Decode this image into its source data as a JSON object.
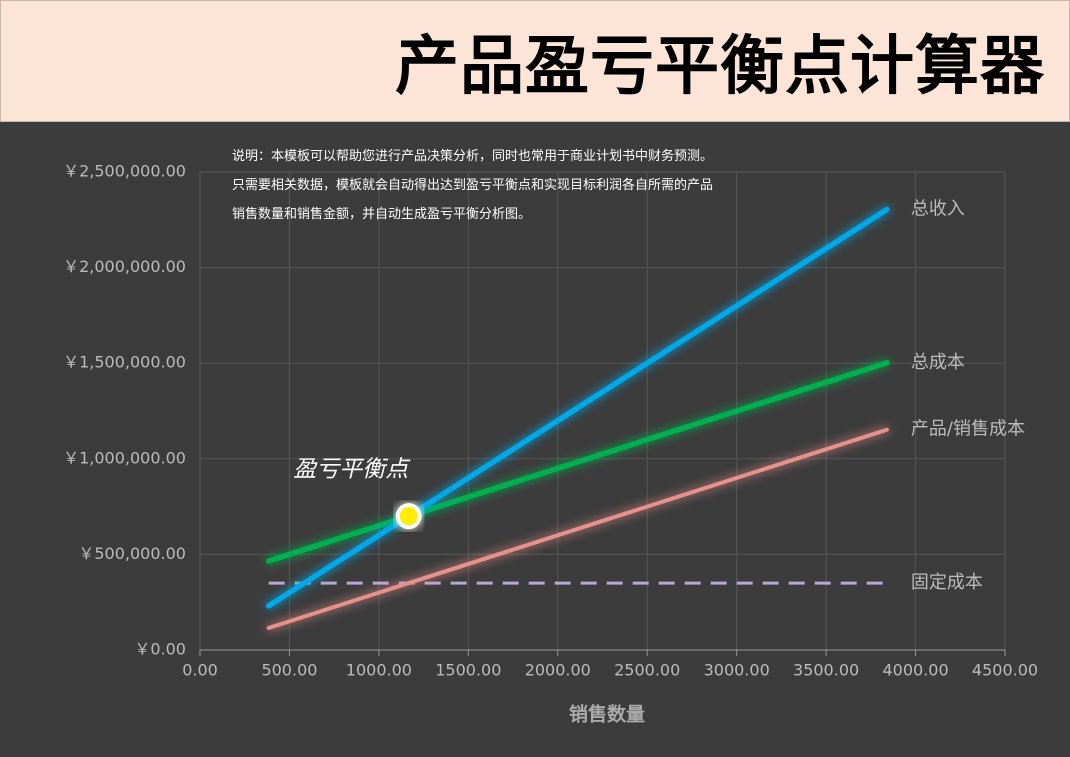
{
  "chart_data": {
    "type": "line",
    "title": "产品盈亏平衡点计算器",
    "description": "说明：本模板可以帮助您进行产品决策分析，同时也常用于商业计划书中财务预测。只需要相关数据，模板就会自动得出达到盈亏平衡点和实现目标利润各自所需的产品销售数量和销售金额，并自动生成盈亏平衡分析图。",
    "x_label": "销售数量",
    "x": [
      384,
      3840
    ],
    "series": [
      {
        "name": "总收入",
        "color": "#00a8e8",
        "values": [
          230400,
          2304000
        ]
      },
      {
        "name": "总成本",
        "color": "#00b050",
        "values": [
          465200,
          1502000
        ]
      },
      {
        "name": "产品/销售成本",
        "color": "#e8918c",
        "values": [
          115200,
          1152000
        ]
      },
      {
        "name": "固定成本",
        "color": "#b9a8d8",
        "values": [
          350000,
          350000
        ],
        "dashed": true
      }
    ],
    "break_even": {
      "label": "盈亏平衡点",
      "x": 1166.67,
      "y": 700000,
      "color": "#ffee00"
    },
    "xlim": [
      0,
      4500
    ],
    "xticks": [
      {
        "value": 0,
        "label": "0.00"
      },
      {
        "value": 500,
        "label": "500.00"
      },
      {
        "value": 1000,
        "label": "1000.00"
      },
      {
        "value": 1500,
        "label": "1500.00"
      },
      {
        "value": 2000,
        "label": "2000.00"
      },
      {
        "value": 2500,
        "label": "2500.00"
      },
      {
        "value": 3000,
        "label": "3000.00"
      },
      {
        "value": 3500,
        "label": "3500.00"
      },
      {
        "value": 4000,
        "label": "4000.00"
      },
      {
        "value": 4500,
        "label": "4500.00"
      }
    ],
    "ylim": [
      0,
      2500000
    ],
    "yticks": [
      {
        "value": 0,
        "label": "￥0.00"
      },
      {
        "value": 500000,
        "label": "￥500,000.00"
      },
      {
        "value": 1000000,
        "label": "￥1,000,000.00"
      },
      {
        "value": 1500000,
        "label": "￥1,500,000.00"
      },
      {
        "value": 2000000,
        "label": "￥2,000,000.00"
      },
      {
        "value": 2500000,
        "label": "￥2,500,000.00"
      }
    ],
    "grid": true
  }
}
